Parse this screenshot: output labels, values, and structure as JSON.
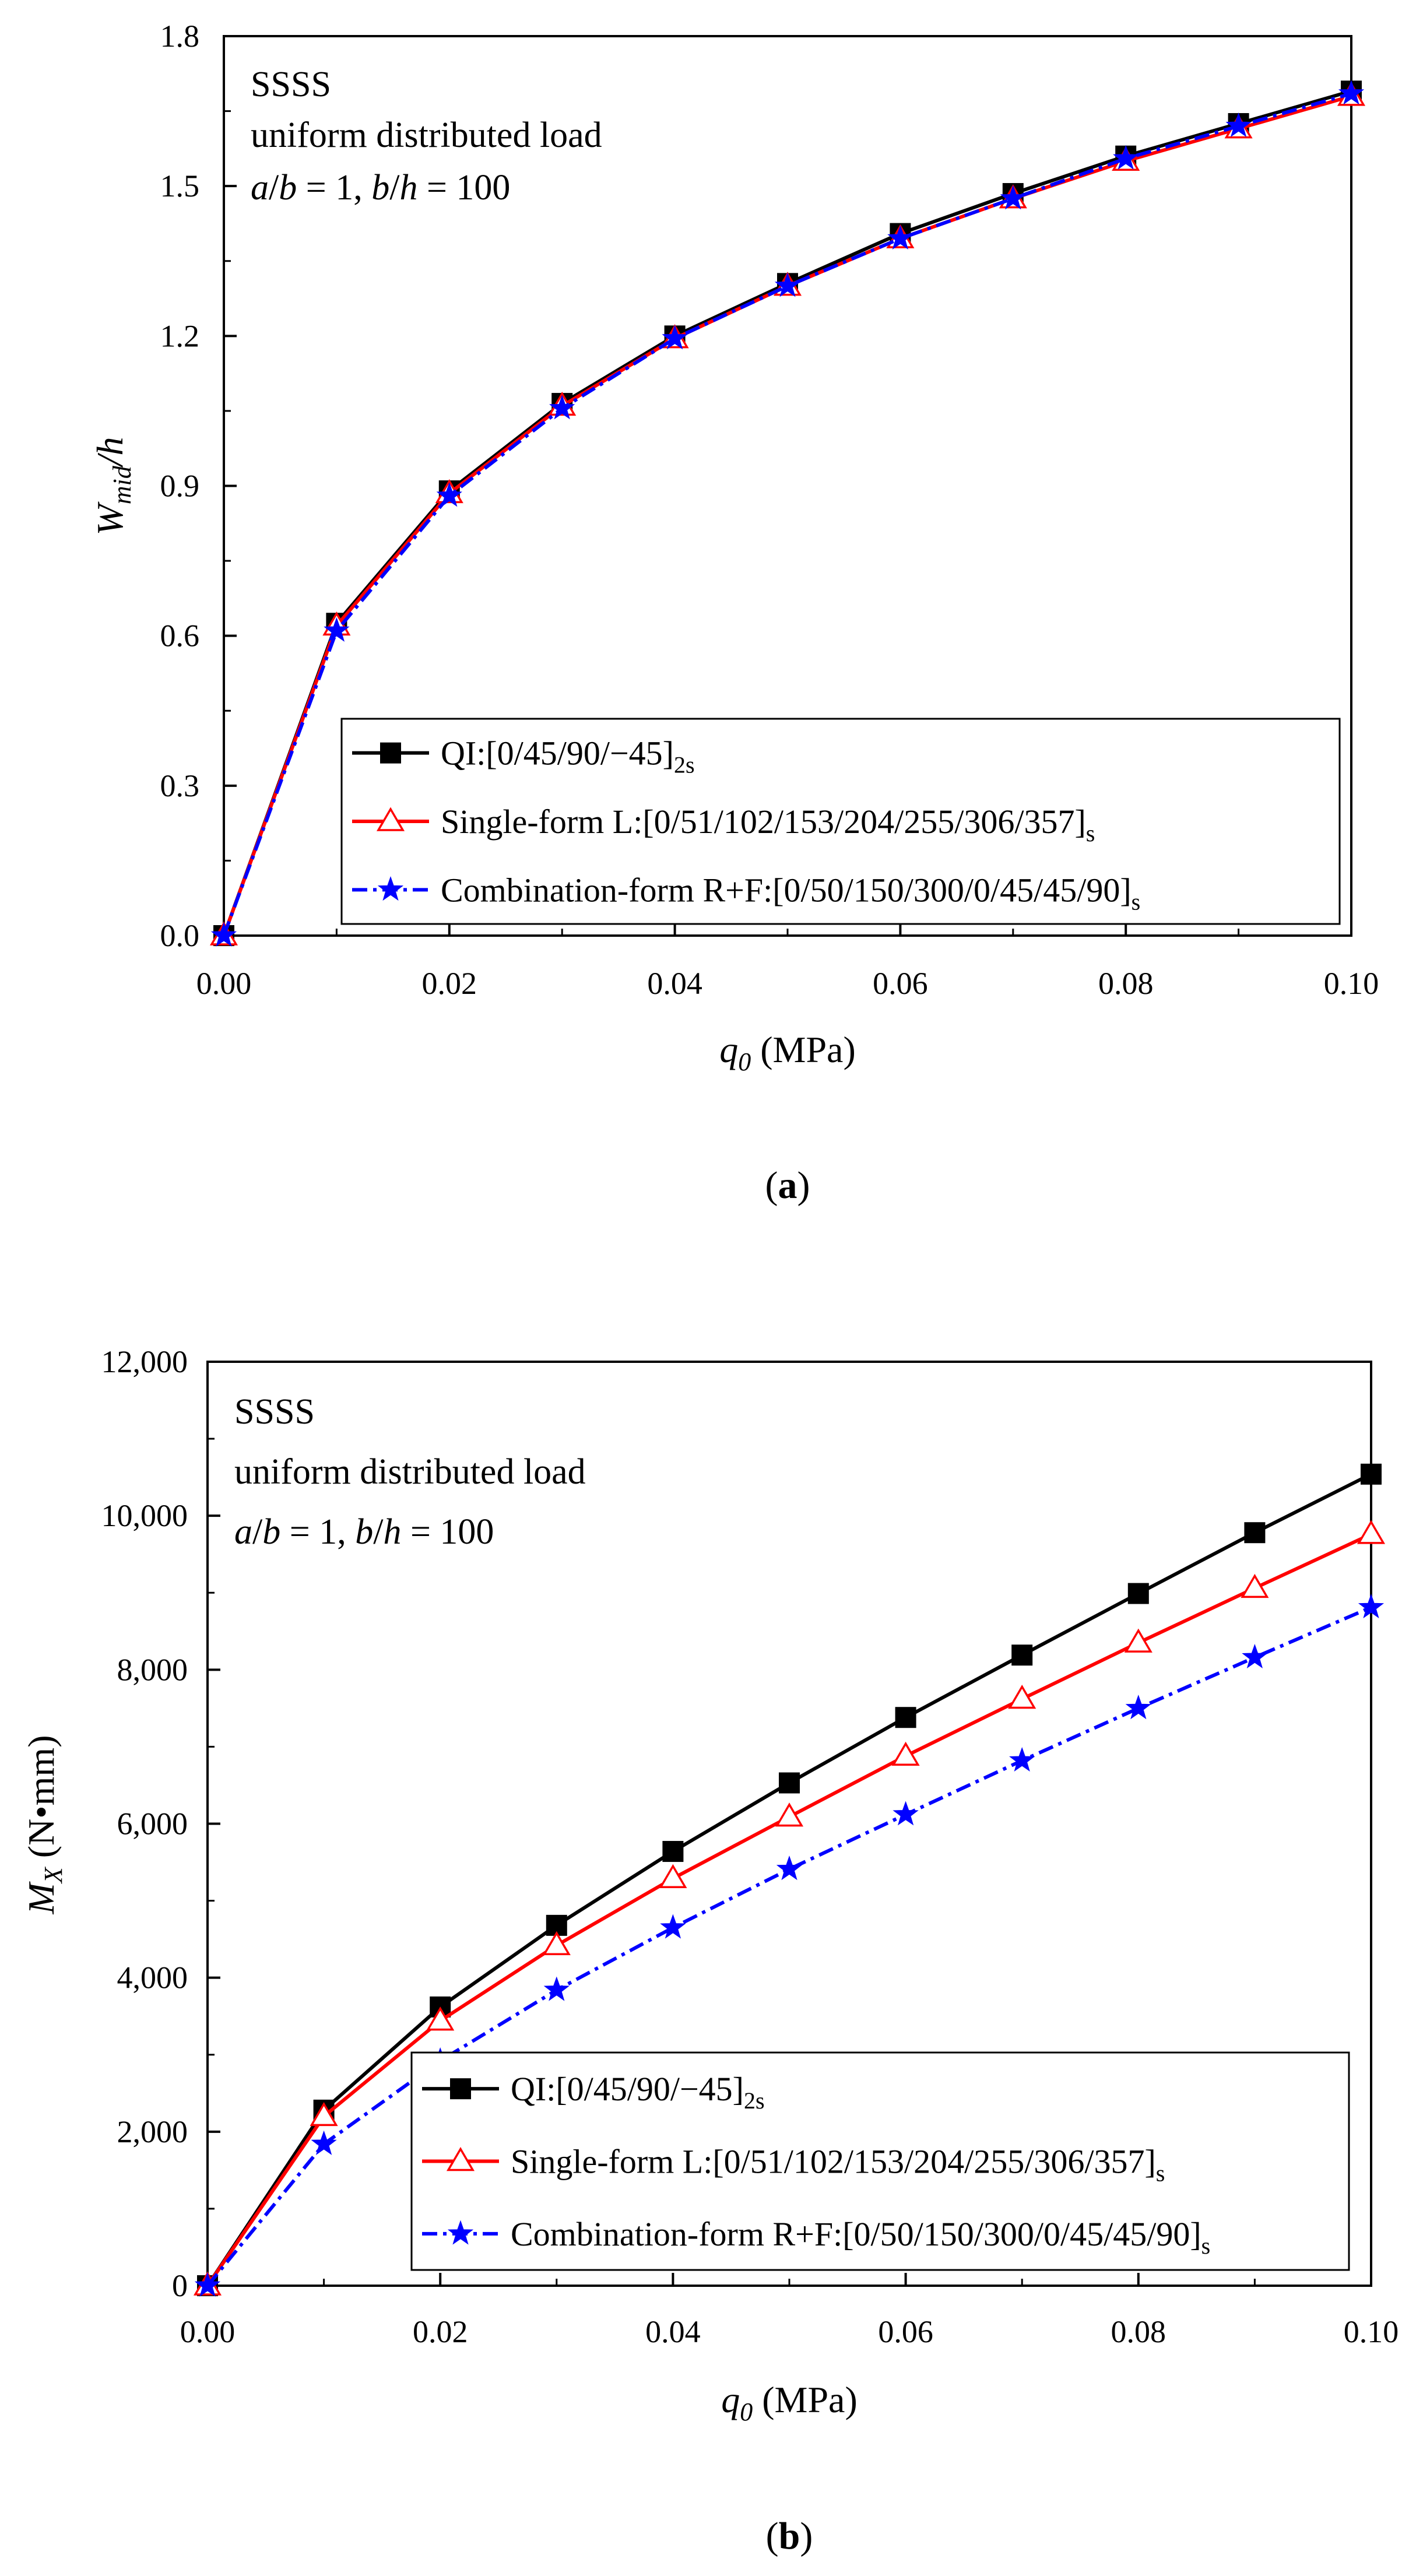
{
  "colors": {
    "qi": "#000000",
    "single": "#ff0000",
    "combo": "#0000ff",
    "axis": "#000000"
  },
  "chart_data": [
    {
      "type": "line",
      "panel_label": "a",
      "annotation": {
        "line1": "SSSS",
        "line2": "uniform distributed  load",
        "line3": {
          "a": "a",
          "b1": "b",
          "eq1": " = 1, ",
          "b2": "b",
          "h": "h",
          "eq2": " = 100"
        }
      },
      "ylabel": {
        "main": "W",
        "sub": "mid",
        "rest": "/h"
      },
      "xlabel": {
        "main": "q",
        "sub": "0",
        "rest": " (MPa)"
      },
      "xlim": [
        0,
        0.1
      ],
      "ylim": [
        0,
        1.8
      ],
      "xticks": [
        0,
        0.02,
        0.04,
        0.06,
        0.08,
        0.1
      ],
      "xtick_labels": [
        "0.00",
        "0.02",
        "0.04",
        "0.06",
        "0.08",
        "0.10"
      ],
      "yticks": [
        0,
        0.3,
        0.6,
        0.9,
        1.2,
        1.5,
        1.8
      ],
      "ytick_labels": [
        "0.0",
        "0.3",
        "0.6",
        "0.9",
        "1.2",
        "1.5",
        "1.8"
      ],
      "x": [
        0,
        0.01,
        0.02,
        0.03,
        0.04,
        0.05,
        0.06,
        0.07,
        0.08,
        0.09,
        0.1
      ],
      "series": [
        {
          "key": "qi",
          "name": "QI:[0/45/90/−45]",
          "sub": "2s",
          "marker": "square",
          "dash": "solid",
          "values": [
            0,
            0.625,
            0.89,
            1.065,
            1.2,
            1.305,
            1.405,
            1.485,
            1.56,
            1.625,
            1.69
          ]
        },
        {
          "key": "single",
          "name": "Single-form L:[0/51/102/153/204/255/306/357]",
          "sub": "s",
          "marker": "triangle",
          "dash": "solid",
          "values": [
            0,
            0.62,
            0.885,
            1.06,
            1.195,
            1.3,
            1.395,
            1.475,
            1.55,
            1.615,
            1.68
          ]
        },
        {
          "key": "combo",
          "name": "Combination-form R+F:[0/50/150/300/0/45/45/90]",
          "sub": "s",
          "marker": "star",
          "dash": "dashdot",
          "values": [
            0,
            0.61,
            0.88,
            1.055,
            1.195,
            1.3,
            1.395,
            1.475,
            1.555,
            1.62,
            1.685
          ]
        }
      ]
    },
    {
      "type": "line",
      "panel_label": "b",
      "annotation": {
        "line1": "SSSS",
        "line2": "uniform distributed  load",
        "line3": {
          "a": "a",
          "b1": "b",
          "eq1": " = 1, ",
          "b2": "b",
          "h": "h",
          "eq2": " = 100"
        }
      },
      "ylabel": {
        "main": "M",
        "sub": "X",
        "rest": " (N•mm)"
      },
      "xlabel": {
        "main": "q",
        "sub": "0",
        "rest": " (MPa)"
      },
      "xlim": [
        0,
        0.1
      ],
      "ylim": [
        0,
        12000
      ],
      "xticks": [
        0,
        0.02,
        0.04,
        0.06,
        0.08,
        0.1
      ],
      "xtick_labels": [
        "0.00",
        "0.02",
        "0.04",
        "0.06",
        "0.08",
        "0.10"
      ],
      "yticks": [
        0,
        2000,
        4000,
        6000,
        8000,
        10000,
        12000
      ],
      "ytick_labels": [
        "0",
        "2,000",
        "4,000",
        "6,000",
        "8,000",
        "10,000",
        "12,000"
      ],
      "x": [
        0,
        0.01,
        0.02,
        0.03,
        0.04,
        0.05,
        0.06,
        0.07,
        0.08,
        0.09,
        0.1
      ],
      "series": [
        {
          "key": "qi",
          "name": "QI:[0/45/90/−45]",
          "sub": "2s",
          "marker": "square",
          "dash": "solid",
          "values": [
            0,
            2280,
            3620,
            4680,
            5640,
            6530,
            7380,
            8190,
            8990,
            9780,
            10540
          ]
        },
        {
          "key": "single",
          "name": "Single-form L:[0/51/102/153/204/255/306/357]",
          "sub": "s",
          "marker": "triangle",
          "dash": "solid",
          "values": [
            0,
            2200,
            3440,
            4420,
            5290,
            6090,
            6880,
            7620,
            8350,
            9060,
            9760
          ]
        },
        {
          "key": "combo",
          "name": "Combination-form R+F:[0/50/150/300/0/45/45/90]",
          "sub": "s",
          "marker": "star",
          "dash": "dashdot",
          "values": [
            0,
            1840,
            2920,
            3840,
            4650,
            5410,
            6120,
            6820,
            7500,
            8160,
            8810
          ]
        }
      ]
    }
  ]
}
